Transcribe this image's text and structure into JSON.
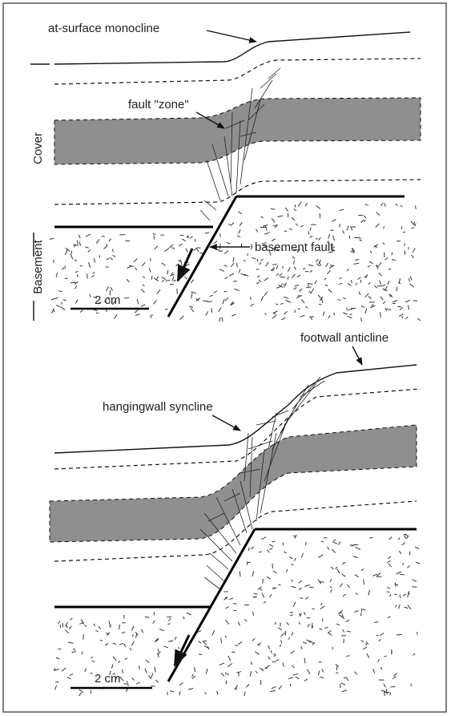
{
  "top_panel": {
    "monocline_label": "at-surface monocline",
    "fault_zone_label": "fault \"zone\"",
    "basement_fault_label": "basement fault",
    "cover_label": "Cover",
    "basement_label": "Basement",
    "scale_label": "2 cm"
  },
  "bottom_panel": {
    "anticline_label": "footwall anticline",
    "syncline_label": "hangingwall syncline",
    "scale_label": "2 cm"
  }
}
